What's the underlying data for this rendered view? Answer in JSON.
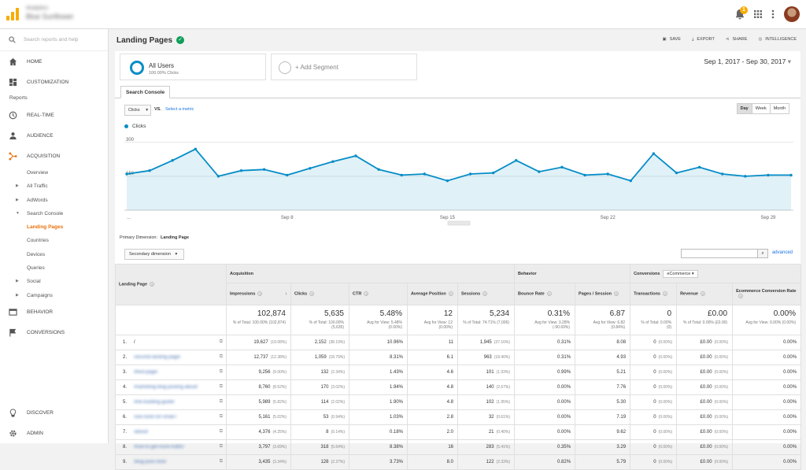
{
  "topbar": {
    "account_line1": "Analytics",
    "account_line2": "Blue Sunflower",
    "notification_count": "1"
  },
  "sidebar": {
    "search_placeholder": "Search reports and help",
    "home": "HOME",
    "customization": "CUSTOMIZATION",
    "reports_label": "Reports",
    "realtime": "REAL-TIME",
    "audience": "AUDIENCE",
    "acquisition": "ACQUISITION",
    "sub": [
      {
        "label": "Overview",
        "caret": ""
      },
      {
        "label": "All Traffic",
        "caret": "▶"
      },
      {
        "label": "AdWords",
        "caret": "▶"
      },
      {
        "label": "Search Console",
        "caret": "▼"
      },
      {
        "label": "Landing Pages",
        "caret": ""
      },
      {
        "label": "Countries",
        "caret": ""
      },
      {
        "label": "Devices",
        "caret": ""
      },
      {
        "label": "Queries",
        "caret": ""
      },
      {
        "label": "Social",
        "caret": "▶"
      },
      {
        "label": "Campaigns",
        "caret": "▶"
      }
    ],
    "behavior": "BEHAVIOR",
    "conversions": "CONVERSIONS",
    "discover": "DISCOVER",
    "admin": "ADMIN"
  },
  "header": {
    "title": "Landing Pages",
    "save": "SAVE",
    "export": "EXPORT",
    "share": "SHARE",
    "intelligence": "INTELLIGENCE",
    "date_range": "Sep 1, 2017 - Sep 30, 2017"
  },
  "segments": {
    "all_users": "All Users",
    "all_users_sub": "100.00% Clicks",
    "add_segment": "+ Add Segment"
  },
  "explorer": {
    "tab": "Search Console",
    "metric": "Clicks",
    "vs": "VS.",
    "select_metric": "Select a metric",
    "periods": [
      "Day",
      "Week",
      "Month"
    ],
    "active_period": "Day",
    "legend": "Clicks"
  },
  "chart_data": {
    "type": "area",
    "series": [
      {
        "name": "Clicks",
        "values": [
          160,
          175,
          220,
          270,
          150,
          175,
          180,
          155,
          185,
          215,
          240,
          180,
          155,
          160,
          130,
          160,
          165,
          220,
          170,
          190,
          155,
          160,
          130,
          250,
          165,
          190,
          160,
          150,
          155,
          155
        ]
      }
    ],
    "x": [
      "Sep 1",
      "Sep 2",
      "Sep 3",
      "Sep 4",
      "Sep 5",
      "Sep 6",
      "Sep 7",
      "Sep 8",
      "Sep 9",
      "Sep 10",
      "Sep 11",
      "Sep 12",
      "Sep 13",
      "Sep 14",
      "Sep 15",
      "Sep 16",
      "Sep 17",
      "Sep 18",
      "Sep 19",
      "Sep 20",
      "Sep 21",
      "Sep 22",
      "Sep 23",
      "Sep 24",
      "Sep 25",
      "Sep 26",
      "Sep 27",
      "Sep 28",
      "Sep 29",
      "Sep 30"
    ],
    "xticks": [
      "...",
      "Sep 8",
      "Sep 15",
      "Sep 22",
      "Sep 29"
    ],
    "yticks": [
      "300",
      "150"
    ],
    "ylim": [
      0,
      320
    ],
    "color": "#058dc7"
  },
  "table": {
    "primary_dimension_label": "Primary Dimension:",
    "primary_dimension_value": "Landing Page",
    "secondary_dimension": "Secondary dimension",
    "advanced": "advanced",
    "groups": {
      "landing_page": "Landing Page",
      "acquisition": "Acquisition",
      "behavior": "Behavior",
      "conversions": "Conversions",
      "conversions_select": "eCommerce"
    },
    "columns": [
      "Impressions",
      "Clicks",
      "CTR",
      "Average Position",
      "Sessions",
      "Bounce Rate",
      "Pages / Session",
      "Transactions",
      "Revenue",
      "Ecommerce Conversion Rate"
    ],
    "totals": [
      {
        "big": "102,874",
        "small": "% of Total: 100.00% (102,874)"
      },
      {
        "big": "5,635",
        "small": "% of Total: 100.00% (5,635)"
      },
      {
        "big": "5.48%",
        "small": "Avg for View: 5.48% (0.00%)"
      },
      {
        "big": "12",
        "small": "Avg for View: 12 (0.00%)"
      },
      {
        "big": "5,234",
        "small": "% of Total: 74.71% (7,006)"
      },
      {
        "big": "0.31%",
        "small": "Avg for View: 3.28% (-90.69%)"
      },
      {
        "big": "6.87",
        "small": "Avg for View: 6.82 (0.84%)"
      },
      {
        "big": "0",
        "small": "% of Total: 0.00% (0)"
      },
      {
        "big": "£0.00",
        "small": "% of Total: 0.00% (£0.00)"
      },
      {
        "big": "0.00%",
        "small": "Avg for View: 0.00% (0.00%)"
      }
    ],
    "rows": [
      {
        "idx": "1.",
        "page": "/",
        "imp": "19,627",
        "imp_p": "(19.08%)",
        "clk": "2,152",
        "clk_p": "(38.19%)",
        "ctr": "10.96%",
        "pos": "11",
        "ses": "1,945",
        "ses_p": "(37.16%)",
        "br": "0.31%",
        "pps": "8.08",
        "tr": "0",
        "tr_p": "(0.00%)",
        "rev": "£0.00",
        "rev_p": "(0.00%)",
        "ecr": "0.00%"
      },
      {
        "idx": "2.",
        "page": "/second-landing-page/",
        "imp": "12,737",
        "imp_p": "(12.38%)",
        "clk": "1,059",
        "clk_p": "(18.79%)",
        "ctr": "8.31%",
        "pos": "6.1",
        "ses": "963",
        "ses_p": "(18.40%)",
        "br": "0.31%",
        "pps": "4.93",
        "tr": "0",
        "tr_p": "(0.00%)",
        "rev": "£0.00",
        "rev_p": "(0.00%)",
        "ecr": "0.00%"
      },
      {
        "idx": "3.",
        "page": "/third-page/",
        "imp": "9,256",
        "imp_p": "(9.00%)",
        "clk": "132",
        "clk_p": "(2.34%)",
        "ctr": "1.43%",
        "pos": "4.6",
        "ses": "101",
        "ses_p": "(1.93%)",
        "br": "0.99%",
        "pps": "5.21",
        "tr": "0",
        "tr_p": "(0.00%)",
        "rev": "£0.00",
        "rev_p": "(0.00%)",
        "ecr": "0.00%"
      },
      {
        "idx": "4.",
        "page": "/marketing-blog-posting-about/",
        "imp": "8,760",
        "imp_p": "(8.52%)",
        "clk": "170",
        "clk_p": "(3.02%)",
        "ctr": "1.94%",
        "pos": "4.8",
        "ses": "140",
        "ses_p": "(2.67%)",
        "br": "0.00%",
        "pps": "7.76",
        "tr": "0",
        "tr_p": "(0.00%)",
        "rev": "£0.00",
        "rev_p": "(0.00%)",
        "ecr": "0.00%"
      },
      {
        "idx": "5.",
        "page": "/link-building-guide/",
        "imp": "5,989",
        "imp_p": "(5.82%)",
        "clk": "114",
        "clk_p": "(2.02%)",
        "ctr": "1.90%",
        "pos": "4.8",
        "ses": "102",
        "ses_p": "(1.95%)",
        "br": "0.00%",
        "pps": "5.30",
        "tr": "0",
        "tr_p": "(0.00%)",
        "rev": "£0.00",
        "rev_p": "(0.00%)",
        "ecr": "0.00%"
      },
      {
        "idx": "6.",
        "page": "/seo-tools-for-small-/",
        "imp": "5,161",
        "imp_p": "(5.02%)",
        "clk": "53",
        "clk_p": "(0.94%)",
        "ctr": "1.03%",
        "pos": "2.8",
        "ses": "32",
        "ses_p": "(0.61%)",
        "br": "0.00%",
        "pps": "7.19",
        "tr": "0",
        "tr_p": "(0.00%)",
        "rev": "£0.00",
        "rev_p": "(0.00%)",
        "ecr": "0.00%"
      },
      {
        "idx": "7.",
        "page": "/about/",
        "imp": "4,376",
        "imp_p": "(4.25%)",
        "clk": "8",
        "clk_p": "(0.14%)",
        "ctr": "0.18%",
        "pos": "2.0",
        "ses": "21",
        "ses_p": "(0.40%)",
        "br": "0.00%",
        "pps": "9.62",
        "tr": "0",
        "tr_p": "(0.00%)",
        "rev": "£0.00",
        "rev_p": "(0.00%)",
        "ecr": "0.00%"
      },
      {
        "idx": "8.",
        "page": "/how-to-get-more-traffic/",
        "imp": "3,797",
        "imp_p": "(3.69%)",
        "clk": "318",
        "clk_p": "(5.64%)",
        "ctr": "8.38%",
        "pos": "16",
        "ses": "283",
        "ses_p": "(5.41%)",
        "br": "0.35%",
        "pps": "3.29",
        "tr": "0",
        "tr_p": "(0.00%)",
        "rev": "£0.00",
        "rev_p": "(0.00%)",
        "ecr": "0.00%"
      },
      {
        "idx": "9.",
        "page": "/blog-post-nine/",
        "imp": "3,435",
        "imp_p": "(3.34%)",
        "clk": "128",
        "clk_p": "(2.27%)",
        "ctr": "3.73%",
        "pos": "8.0",
        "ses": "122",
        "ses_p": "(2.33%)",
        "br": "0.82%",
        "pps": "5.79",
        "tr": "0",
        "tr_p": "(0.00%)",
        "rev": "£0.00",
        "rev_p": "(0.00%)",
        "ecr": "0.00%"
      }
    ]
  }
}
